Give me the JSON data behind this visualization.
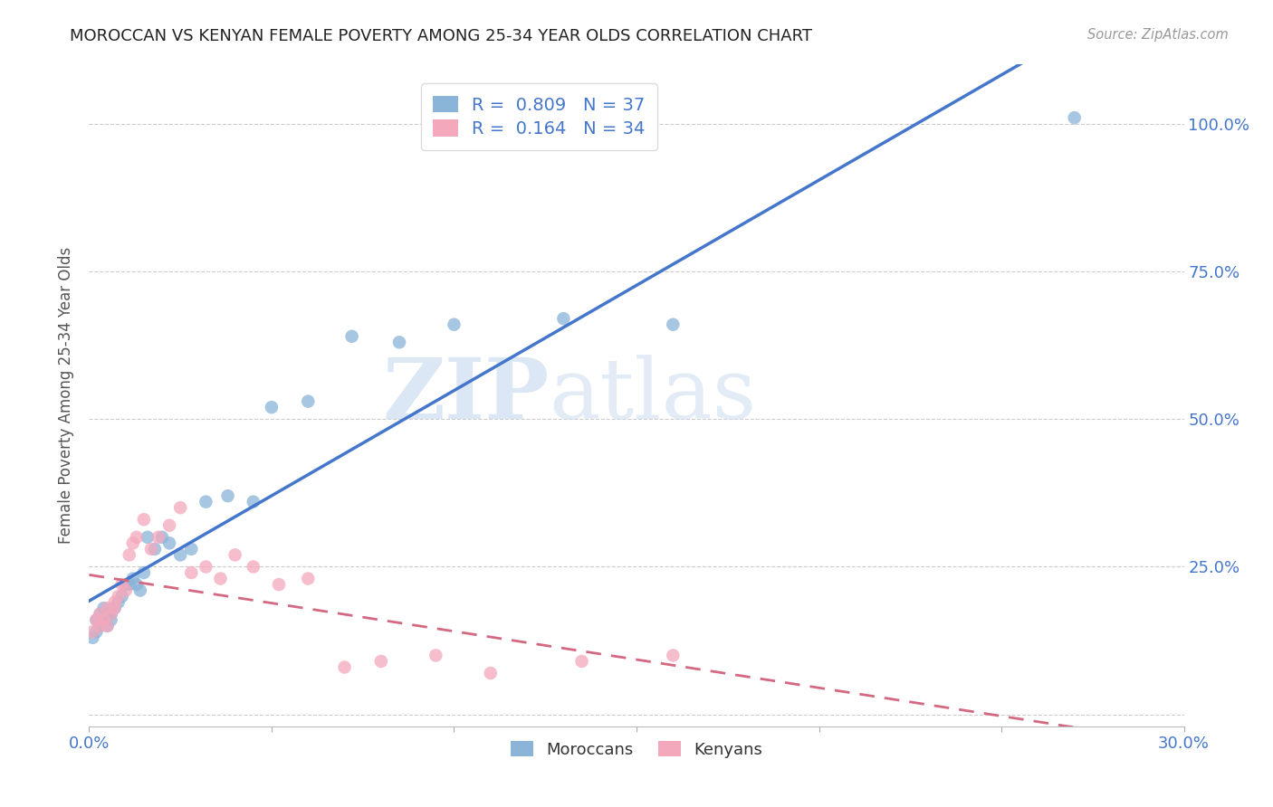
{
  "title": "MOROCCAN VS KENYAN FEMALE POVERTY AMONG 25-34 YEAR OLDS CORRELATION CHART",
  "source": "Source: ZipAtlas.com",
  "ylabel": "Female Poverty Among 25-34 Year Olds",
  "xlim": [
    0.0,
    0.3
  ],
  "ylim": [
    -0.02,
    1.1
  ],
  "x_ticks": [
    0.0,
    0.05,
    0.1,
    0.15,
    0.2,
    0.25,
    0.3
  ],
  "x_tick_labels": [
    "0.0%",
    "",
    "",
    "",
    "",
    "",
    "30.0%"
  ],
  "y_ticks": [
    0.0,
    0.25,
    0.5,
    0.75,
    1.0
  ],
  "y_tick_labels": [
    "",
    "25.0%",
    "50.0%",
    "75.0%",
    "100.0%"
  ],
  "moroccan_color": "#8ab4d8",
  "kenyan_color": "#f4a8bc",
  "moroccan_line_color": "#4477cc",
  "kenyan_line_color": "#d46880",
  "legend_moroccan_R": "0.809",
  "legend_moroccan_N": "37",
  "legend_kenyan_R": "0.164",
  "legend_kenyan_N": "34",
  "watermark_zip": "ZIP",
  "watermark_atlas": "atlas",
  "background_color": "#ffffff",
  "moroccan_x": [
    0.001,
    0.002,
    0.002,
    0.003,
    0.003,
    0.004,
    0.004,
    0.005,
    0.005,
    0.006,
    0.006,
    0.007,
    0.008,
    0.009,
    0.01,
    0.011,
    0.012,
    0.013,
    0.014,
    0.015,
    0.016,
    0.018,
    0.02,
    0.022,
    0.025,
    0.028,
    0.032,
    0.038,
    0.045,
    0.05,
    0.06,
    0.072,
    0.085,
    0.1,
    0.13,
    0.16,
    0.27
  ],
  "moroccan_y": [
    0.13,
    0.14,
    0.16,
    0.15,
    0.17,
    0.16,
    0.18,
    0.17,
    0.15,
    0.16,
    0.17,
    0.18,
    0.19,
    0.2,
    0.22,
    0.22,
    0.23,
    0.22,
    0.21,
    0.24,
    0.3,
    0.28,
    0.3,
    0.29,
    0.27,
    0.28,
    0.36,
    0.37,
    0.36,
    0.52,
    0.53,
    0.64,
    0.63,
    0.66,
    0.67,
    0.66,
    1.01
  ],
  "kenyan_x": [
    0.001,
    0.002,
    0.003,
    0.003,
    0.004,
    0.005,
    0.005,
    0.006,
    0.007,
    0.007,
    0.008,
    0.009,
    0.01,
    0.011,
    0.012,
    0.013,
    0.015,
    0.017,
    0.019,
    0.022,
    0.025,
    0.028,
    0.032,
    0.036,
    0.04,
    0.045,
    0.052,
    0.06,
    0.07,
    0.08,
    0.095,
    0.11,
    0.135,
    0.16
  ],
  "kenyan_y": [
    0.14,
    0.16,
    0.15,
    0.17,
    0.16,
    0.18,
    0.15,
    0.17,
    0.19,
    0.18,
    0.2,
    0.22,
    0.21,
    0.27,
    0.29,
    0.3,
    0.33,
    0.28,
    0.3,
    0.32,
    0.35,
    0.24,
    0.25,
    0.23,
    0.27,
    0.25,
    0.22,
    0.23,
    0.08,
    0.09,
    0.1,
    0.07,
    0.09,
    0.1
  ]
}
